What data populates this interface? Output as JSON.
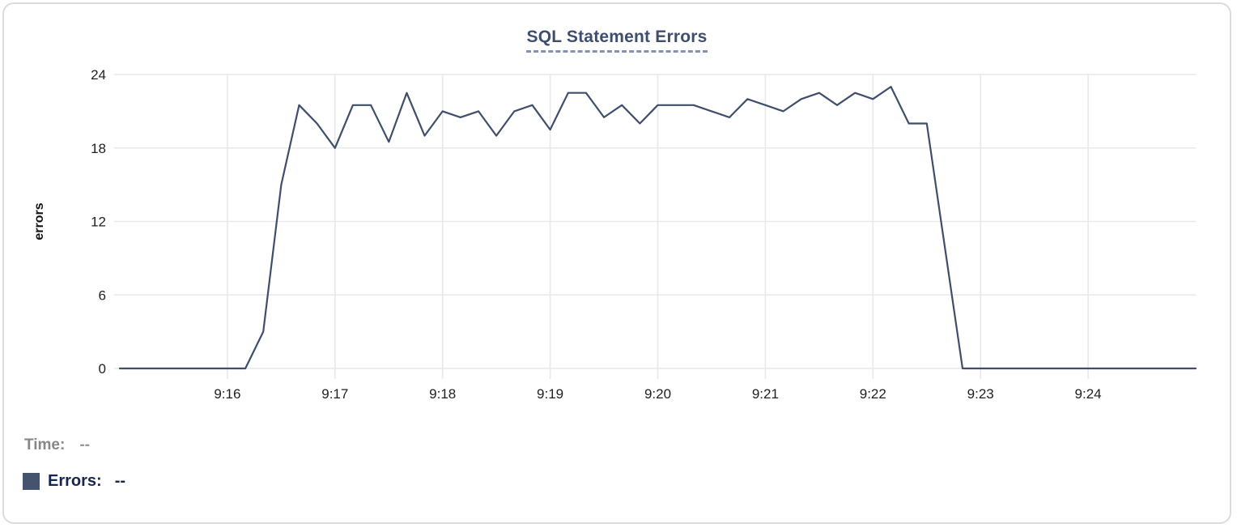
{
  "chart_data": {
    "type": "line",
    "title": "SQL Statement Errors",
    "xlabel": "",
    "ylabel": "errors",
    "ylim": [
      0,
      24
    ],
    "yticks": [
      0,
      6,
      12,
      18,
      24
    ],
    "xticks": [
      "9:16",
      "9:17",
      "9:18",
      "9:19",
      "9:20",
      "9:21",
      "9:22",
      "9:23",
      "9:24"
    ],
    "x_range": [
      "9:15:00",
      "9:25:00"
    ],
    "grid": true,
    "legend_position": "bottom-left",
    "line_color": "#3f4e6c",
    "series": [
      {
        "name": "Errors",
        "x": [
          "9:15:00",
          "9:15:10",
          "9:15:20",
          "9:15:30",
          "9:15:40",
          "9:15:50",
          "9:16:00",
          "9:16:10",
          "9:16:20",
          "9:16:30",
          "9:16:40",
          "9:16:50",
          "9:17:00",
          "9:17:10",
          "9:17:20",
          "9:17:30",
          "9:17:40",
          "9:17:50",
          "9:18:00",
          "9:18:10",
          "9:18:20",
          "9:18:30",
          "9:18:40",
          "9:18:50",
          "9:19:00",
          "9:19:10",
          "9:19:20",
          "9:19:30",
          "9:19:40",
          "9:19:50",
          "9:20:00",
          "9:20:10",
          "9:20:20",
          "9:20:30",
          "9:20:40",
          "9:20:50",
          "9:21:00",
          "9:21:10",
          "9:21:20",
          "9:21:30",
          "9:21:40",
          "9:21:50",
          "9:22:00",
          "9:22:10",
          "9:22:20",
          "9:22:30",
          "9:22:40",
          "9:22:50",
          "9:23:00",
          "9:23:10",
          "9:23:20",
          "9:23:30",
          "9:23:40",
          "9:23:50",
          "9:24:00",
          "9:24:10",
          "9:24:20",
          "9:24:30",
          "9:24:40",
          "9:24:50",
          "9:25:00"
        ],
        "values": [
          0,
          0,
          0,
          0,
          0,
          0,
          0,
          0,
          3,
          15,
          21.5,
          20,
          18,
          21.5,
          21.5,
          18.5,
          22.5,
          19,
          21,
          20.5,
          21,
          19,
          21,
          21.5,
          19.5,
          22.5,
          22.5,
          20.5,
          21.5,
          20,
          21.5,
          21.5,
          21.5,
          21,
          20.5,
          22,
          21.5,
          21,
          22,
          22.5,
          21.5,
          22.5,
          22,
          23,
          20,
          20,
          10,
          0,
          0,
          0,
          0,
          0,
          0,
          0,
          0,
          0,
          0,
          0,
          0,
          0,
          0
        ]
      }
    ]
  },
  "legend": {
    "time_label": "Time:",
    "time_value": "--",
    "errors_label": "Errors:",
    "errors_value": "--",
    "swatch_color": "#46536e"
  }
}
